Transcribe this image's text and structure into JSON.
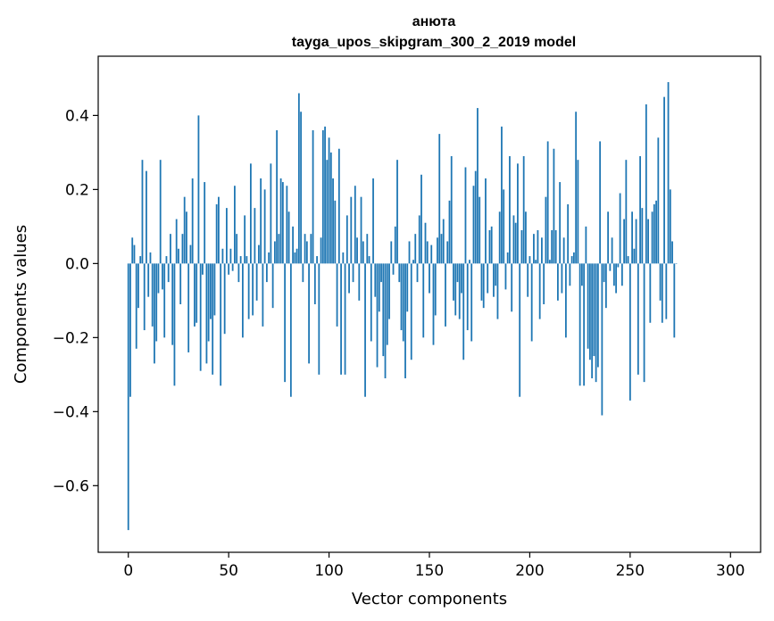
{
  "chart_data": {
    "type": "bar",
    "title": "анюта",
    "subtitle": "tayga_upos_skipgram_300_2_2019 model",
    "xlabel": "Vector components",
    "ylabel": "Components values",
    "xlim": [
      -15,
      315
    ],
    "ylim": [
      -0.78,
      0.56
    ],
    "xticks": [
      0,
      50,
      100,
      150,
      200,
      250,
      300
    ],
    "xtick_labels": [
      "0",
      "50",
      "100",
      "150",
      "200",
      "250",
      "300"
    ],
    "yticks": [
      -0.6,
      -0.4,
      -0.2,
      0.0,
      0.2,
      0.4
    ],
    "ytick_labels": [
      "−0.6",
      "−0.4",
      "−0.2",
      "0.0",
      "0.2",
      "0.4"
    ],
    "grid": false,
    "bar_color": "#1f77b4",
    "values": [
      -0.72,
      -0.36,
      0.07,
      0.05,
      -0.23,
      -0.12,
      0.02,
      0.28,
      -0.18,
      0.25,
      -0.09,
      0.03,
      -0.17,
      -0.27,
      -0.21,
      -0.08,
      0.28,
      -0.07,
      -0.2,
      0.02,
      -0.05,
      0.08,
      -0.22,
      -0.33,
      0.12,
      0.04,
      -0.11,
      0.08,
      0.18,
      0.14,
      -0.24,
      0.05,
      0.23,
      -0.17,
      -0.16,
      0.4,
      -0.29,
      -0.03,
      0.22,
      -0.27,
      -0.21,
      -0.15,
      -0.3,
      -0.14,
      0.16,
      0.18,
      -0.33,
      0.04,
      -0.19,
      0.15,
      -0.03,
      0.04,
      -0.02,
      0.21,
      0.08,
      -0.05,
      0.02,
      -0.2,
      0.13,
      0.02,
      -0.15,
      0.27,
      -0.14,
      0.15,
      -0.1,
      0.05,
      0.23,
      -0.17,
      0.2,
      -0.05,
      0.03,
      0.27,
      -0.12,
      0.06,
      0.36,
      0.08,
      0.23,
      0.22,
      -0.32,
      0.21,
      0.14,
      -0.36,
      0.1,
      0.03,
      0.04,
      0.46,
      0.41,
      -0.05,
      0.08,
      0.06,
      -0.27,
      0.08,
      0.36,
      -0.11,
      0.02,
      -0.3,
      0.07,
      0.36,
      0.37,
      0.28,
      0.34,
      0.3,
      0.23,
      0.17,
      -0.17,
      0.31,
      -0.3,
      0.03,
      -0.3,
      0.13,
      -0.08,
      0.18,
      -0.05,
      0.21,
      0.07,
      -0.1,
      0.18,
      0.06,
      -0.36,
      0.08,
      0.02,
      -0.21,
      0.23,
      -0.09,
      -0.28,
      -0.13,
      -0.05,
      -0.25,
      -0.31,
      -0.22,
      -0.15,
      0.06,
      -0.03,
      0.1,
      0.28,
      -0.05,
      -0.18,
      -0.21,
      -0.31,
      -0.13,
      0.06,
      -0.26,
      0.01,
      0.08,
      -0.05,
      0.13,
      0.24,
      -0.2,
      0.11,
      0.06,
      -0.08,
      0.05,
      -0.22,
      -0.14,
      0.07,
      0.35,
      0.08,
      0.12,
      -0.17,
      0.06,
      0.17,
      0.29,
      -0.1,
      -0.14,
      -0.05,
      -0.15,
      -0.08,
      -0.26,
      0.26,
      -0.18,
      0.01,
      -0.21,
      0.21,
      0.25,
      0.42,
      0.18,
      -0.1,
      -0.12,
      0.23,
      -0.08,
      0.09,
      0.1,
      -0.09,
      -0.06,
      -0.15,
      0.14,
      0.37,
      0.2,
      -0.07,
      0.03,
      0.29,
      -0.13,
      0.13,
      0.11,
      0.27,
      -0.36,
      0.09,
      0.29,
      0.14,
      -0.09,
      0.02,
      -0.21,
      0.08,
      0.01,
      0.09,
      -0.15,
      0.07,
      -0.11,
      0.18,
      0.33,
      0.01,
      0.09,
      0.31,
      0.09,
      -0.1,
      0.22,
      -0.08,
      0.07,
      -0.2,
      0.16,
      -0.06,
      0.02,
      0.03,
      0.41,
      0.28,
      -0.33,
      -0.06,
      -0.33,
      0.1,
      -0.23,
      -0.26,
      -0.31,
      -0.25,
      -0.32,
      -0.28,
      0.33,
      -0.41,
      -0.05,
      -0.12,
      0.14,
      -0.02,
      0.07,
      -0.06,
      -0.08,
      -0.01,
      0.19,
      -0.06,
      0.12,
      0.28,
      0.02,
      -0.37,
      0.14,
      0.04,
      0.12,
      -0.3,
      0.29,
      0.15,
      -0.32,
      0.43,
      0.12,
      -0.16,
      0.14,
      0.16,
      0.17,
      0.34,
      -0.1,
      -0.16,
      0.45,
      -0.15,
      0.49,
      0.2,
      0.06,
      -0.2,
      0.0
    ]
  }
}
